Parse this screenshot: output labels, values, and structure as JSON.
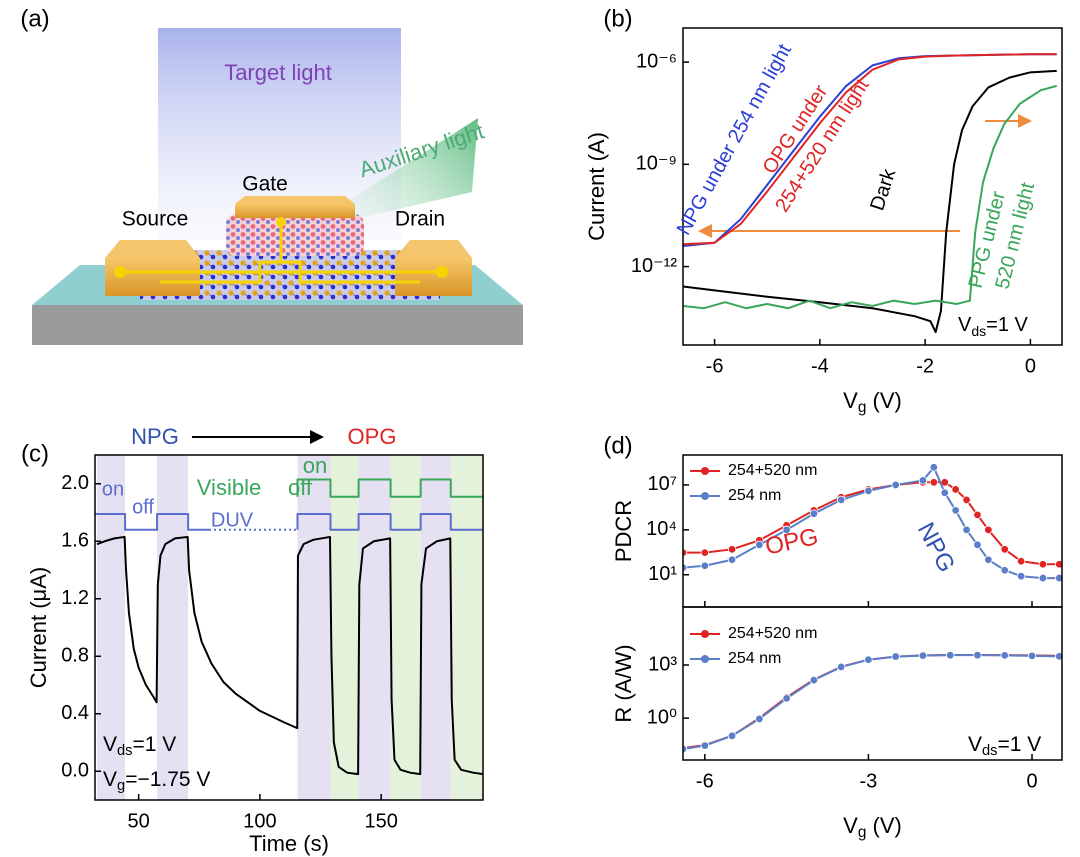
{
  "diagram": {
    "panel_label": "(a)",
    "target_light": "Target light",
    "auxiliary_light": "Auxiliary light",
    "gate": "Gate",
    "source": "Source",
    "drain": "Drain"
  },
  "chart_data": [
    {
      "type": "line",
      "panel_label": "(b)",
      "ylabel": "Current (A)",
      "xlabel": [
        "V",
        "g",
        " (V)"
      ],
      "xlim": [
        -6.6,
        0.6
      ],
      "xticks": [
        -6,
        -4,
        -2,
        0
      ],
      "ylog": true,
      "ylim": [
        5e-15,
        1e-05
      ],
      "yticks": [
        {
          "value": 1e-12,
          "label": "10⁻¹²"
        },
        {
          "value": 1e-09,
          "label": "10⁻⁹"
        },
        {
          "value": 1e-06,
          "label": "10⁻⁶"
        }
      ],
      "series": [
        {
          "color": "#2a3fd6",
          "x": [
            -6.6,
            -6,
            -5.5,
            -5,
            -4.5,
            -4,
            -3.5,
            -3,
            -2.5,
            -2,
            -1.5,
            -1,
            -0.5,
            0,
            0.5
          ],
          "values": [
            4e-12,
            5e-12,
            2.5e-11,
            2.5e-10,
            2.5e-09,
            2.5e-08,
            2e-07,
            8e-07,
            1.3e-06,
            1.5e-06,
            1.55e-06,
            1.6e-06,
            1.65e-06,
            1.7e-06,
            1.7e-06
          ]
        },
        {
          "color": "#e02424",
          "x": [
            -6.6,
            -6,
            -5.5,
            -5,
            -4.5,
            -4,
            -3.5,
            -3,
            -2.5,
            -2,
            -1.5,
            -1,
            -0.5,
            0,
            0.5
          ],
          "values": [
            4.5e-12,
            5e-12,
            1.8e-11,
            1.6e-10,
            1.6e-09,
            1.6e-08,
            1.3e-07,
            6e-07,
            1.2e-06,
            1.45e-06,
            1.55e-06,
            1.6e-06,
            1.65e-06,
            1.7e-06,
            1.7e-06
          ]
        },
        {
          "color": "#000000",
          "x": [
            -6.6,
            -6,
            -5,
            -4,
            -3,
            -2.2,
            -1.9,
            -1.8,
            -1.7,
            -1.6,
            -1.45,
            -1.3,
            -1.1,
            -0.8,
            -0.4,
            0,
            0.5
          ],
          "values": [
            2.6e-13,
            2e-13,
            1.3e-13,
            9e-14,
            6e-14,
            3.5e-14,
            2.5e-14,
            1.2e-14,
            5e-14,
            1e-11,
            1e-09,
            1e-08,
            5e-08,
            1.8e-07,
            3.5e-07,
            5e-07,
            5.5e-07
          ]
        },
        {
          "color": "#3aa65a",
          "x": [
            -6.6,
            -6.2,
            -5.8,
            -5.4,
            -5,
            -4.6,
            -4.2,
            -3.8,
            -3.4,
            -3,
            -2.6,
            -2.2,
            -1.8,
            -1.4,
            -1.15,
            -1.05,
            -0.9,
            -0.7,
            -0.5,
            -0.2,
            0.2,
            0.5
          ],
          "values": [
            7e-14,
            6e-14,
            9e-14,
            6e-14,
            8e-14,
            6e-14,
            1e-13,
            6e-14,
            9e-14,
            7e-14,
            1e-13,
            8e-14,
            1e-13,
            8e-14,
            1e-13,
            1e-11,
            3e-10,
            3e-09,
            1.5e-08,
            6e-08,
            1.5e-07,
            2e-07
          ]
        }
      ],
      "annotations": [
        {
          "text": "NPG under 254 nm light",
          "color": "#2a3fd6"
        },
        {
          "text": "OPG under",
          "color": "#e02424"
        },
        {
          "text": "254+520 nm light",
          "color": "#e02424"
        },
        {
          "text": "Dark",
          "color": "#000000"
        },
        {
          "text": "PPG under",
          "color": "#3aa65a"
        },
        {
          "text": "520 nm light",
          "color": "#3aa65a"
        },
        {
          "text": [
            "V",
            "ds",
            "=1 V"
          ],
          "color": "#000000"
        }
      ]
    },
    {
      "type": "line",
      "panel_label": "(c)",
      "ylabel": "Current (μA)",
      "xlabel": "Time (s)",
      "xlim": [
        32,
        192
      ],
      "xticks": [
        50,
        100,
        150
      ],
      "ylim": [
        -0.2,
        2.2
      ],
      "yticks": [
        {
          "value": 0,
          "label": "0.0"
        },
        0.4,
        0.8,
        1.2,
        1.6,
        {
          "value": 2,
          "label": "2.0"
        }
      ],
      "bands": [
        {
          "x": [
            32.8,
            44.4
          ],
          "color": "#e6e0f3"
        },
        {
          "x": [
            57.6,
            70.4
          ],
          "color": "#e6e0f3"
        },
        {
          "x": [
            115.5,
            129.1
          ],
          "color": "#e6e0f3"
        },
        {
          "x": [
            140.7,
            153.9
          ],
          "color": "#e6e0f3"
        },
        {
          "x": [
            166.3,
            178.7
          ],
          "color": "#e6e0f3"
        },
        {
          "x": [
            129.1,
            140.7
          ],
          "color": "#e4f2dc"
        },
        {
          "x": [
            153.9,
            166.3
          ],
          "color": "#e4f2dc"
        },
        {
          "x": [
            178.7,
            192
          ],
          "color": "#e4f2dc"
        }
      ],
      "series": [
        {
          "color": "#000000",
          "x": [
            32.8,
            36,
            40,
            44.2,
            44.8,
            46,
            48,
            50,
            53,
            56,
            57.4,
            57.9,
            59,
            61,
            65,
            70.2,
            70.8,
            73,
            76,
            80,
            85,
            90,
            100,
            110,
            115.4,
            115.7,
            118,
            122,
            128.9,
            129.5,
            130.5,
            132.5,
            136,
            140.5,
            141,
            142.5,
            147,
            153.7,
            154.3,
            155.5,
            158,
            162,
            166.1,
            166.6,
            168.5,
            173,
            178.5,
            179.1,
            180.3,
            183,
            188,
            192
          ],
          "values": [
            1.58,
            1.6,
            1.62,
            1.63,
            1.4,
            1.1,
            0.85,
            0.72,
            0.6,
            0.52,
            0.48,
            1.3,
            1.5,
            1.58,
            1.62,
            1.63,
            1.4,
            1.1,
            0.9,
            0.75,
            0.62,
            0.54,
            0.42,
            0.34,
            0.3,
            1.5,
            1.58,
            1.61,
            1.63,
            0.8,
            0.2,
            0.03,
            -0.01,
            -0.02,
            1.3,
            1.55,
            1.6,
            1.62,
            0.5,
            0.08,
            0.01,
            -0.01,
            -0.02,
            1.3,
            1.55,
            1.6,
            1.62,
            0.5,
            0.08,
            0.01,
            -0.01,
            -0.02
          ]
        },
        {
          "color": "#5b6ed0",
          "x": [
            32,
            44.4,
            44.4,
            57.6,
            57.6,
            70.4,
            70.4,
            79
          ],
          "values": [
            1.79,
            1.79,
            1.68,
            1.68,
            1.79,
            1.79,
            1.68,
            1.68
          ]
        },
        {
          "color": "#5b6ed0",
          "dash": true,
          "x": [
            79,
            115.5
          ],
          "values": [
            1.68,
            1.68
          ]
        },
        {
          "color": "#5b6ed0",
          "x": [
            115.5,
            115.5,
            129.1,
            129.1,
            140.7,
            140.7,
            153.9,
            153.9,
            166.3,
            166.3,
            178.7,
            178.7,
            192
          ],
          "values": [
            1.68,
            1.79,
            1.79,
            1.68,
            1.68,
            1.79,
            1.79,
            1.68,
            1.68,
            1.79,
            1.79,
            1.68,
            1.68
          ]
        },
        {
          "color": "#3aa65a",
          "x": [
            115.5,
            115.5,
            129.1,
            129.1,
            140.7,
            140.7,
            153.9,
            153.9,
            166.3,
            166.3,
            178.7,
            178.7,
            192
          ],
          "values": [
            1.91,
            2.03,
            2.03,
            1.91,
            1.91,
            2.03,
            2.03,
            1.91,
            1.91,
            2.03,
            2.03,
            1.91,
            1.91
          ]
        }
      ],
      "annotations": [
        {
          "text": "NPG",
          "color": "#3050b0"
        },
        {
          "text": "OPG",
          "color": "#e02424"
        },
        {
          "text": "on",
          "color": "#5b6ed0"
        },
        {
          "text": "off",
          "color": "#5b6ed0"
        },
        {
          "text": "DUV",
          "color": "#5b6ed0"
        },
        {
          "text": "Visible",
          "color": "#3aa65a"
        },
        {
          "text": "off",
          "color": "#3aa65a"
        },
        {
          "text": "on",
          "color": "#3aa65a"
        },
        {
          "text": [
            "V",
            "ds",
            "=1 V"
          ],
          "color": "#000000"
        },
        {
          "text": [
            "V",
            "g",
            "=−1.75 V"
          ],
          "color": "#000000"
        }
      ]
    },
    {
      "type": "line",
      "panel_label": "(d)",
      "ylabel": "PDCR",
      "xlim": [
        -6.4,
        0.55
      ],
      "xticks": [
        -6,
        -3,
        0
      ],
      "ylog": true,
      "ylim": [
        0.07,
        1000000000.0
      ],
      "yticks": [
        {
          "value": 10,
          "label": "10¹"
        },
        {
          "value": 10000,
          "label": "10⁴"
        },
        {
          "value": 10000000,
          "label": "10⁷"
        }
      ],
      "legend": "upper left",
      "series": [
        {
          "name": "254+520 nm",
          "color": "#e02424",
          "marker": "circle",
          "x": [
            -6.4,
            -6,
            -5.5,
            -5,
            -4.5,
            -4,
            -3.5,
            -3,
            -2.5,
            -2,
            -1.8,
            -1.6,
            -1.4,
            -1.2,
            -1,
            -0.8,
            -0.5,
            -0.2,
            0.2,
            0.5
          ],
          "values": [
            300,
            300,
            500,
            2000,
            20000,
            200000,
            1500000,
            5000000,
            10000000,
            15000000,
            15000000,
            15000000,
            5000000,
            1000000,
            100000,
            10000,
            500,
            80,
            50,
            50
          ]
        },
        {
          "name": "254 nm",
          "color": "#5a7fc8",
          "marker": "circle",
          "x": [
            -6.4,
            -6,
            -5.5,
            -5,
            -4.5,
            -4,
            -3.5,
            -3,
            -2.5,
            -2,
            -1.8,
            -1.6,
            -1.4,
            -1.2,
            -1,
            -0.8,
            -0.5,
            -0.2,
            0.2,
            0.5
          ],
          "values": [
            30,
            40,
            100,
            1000,
            10000,
            120000,
            1000000,
            4000000,
            10000000,
            20000000,
            150000000,
            3000000,
            200000,
            10000,
            1000,
            100,
            20,
            8,
            6,
            6
          ]
        }
      ],
      "annotations": [
        {
          "text": "OPG",
          "color": "#e02424"
        },
        {
          "text": "NPG",
          "color": "#3050b0"
        }
      ]
    },
    {
      "type": "line",
      "ylabel": "R (A/W)",
      "xlabel": [
        "V",
        "g",
        " (V)"
      ],
      "xlim": [
        -6.4,
        0.55
      ],
      "xticks": [
        -6,
        -3,
        0
      ],
      "ylog": true,
      "ylim": [
        0.0043,
        1900000
      ],
      "yticks": [
        {
          "value": 1,
          "label": "10⁰"
        },
        {
          "value": 1000,
          "label": "10³"
        }
      ],
      "legend": "upper left",
      "series": [
        {
          "name": "254+520 nm",
          "color": "#e02424",
          "marker": "circle",
          "x": [
            -6.4,
            -6,
            -5.5,
            -5,
            -4.5,
            -4,
            -3.5,
            -3,
            -2.5,
            -2,
            -1.5,
            -1,
            -0.5,
            0,
            0.5
          ],
          "values": [
            0.02,
            0.03,
            0.1,
            1,
            15,
            150,
            800,
            2000,
            3000,
            3500,
            3700,
            3700,
            3600,
            3500,
            3300
          ]
        },
        {
          "name": "254 nm",
          "color": "#5a7fc8",
          "marker": "circle",
          "x": [
            -6.4,
            -6,
            -5.5,
            -5,
            -4.5,
            -4,
            -3.5,
            -3,
            -2.5,
            -2,
            -1.5,
            -1,
            -0.5,
            0,
            0.5
          ],
          "values": [
            0.018,
            0.028,
            0.1,
            0.9,
            13,
            140,
            780,
            2000,
            3000,
            3400,
            3600,
            3600,
            3500,
            3300,
            3100
          ]
        }
      ],
      "annotations": [
        {
          "text": [
            "V",
            "ds",
            "=1 V"
          ],
          "color": "#000000"
        }
      ]
    }
  ]
}
